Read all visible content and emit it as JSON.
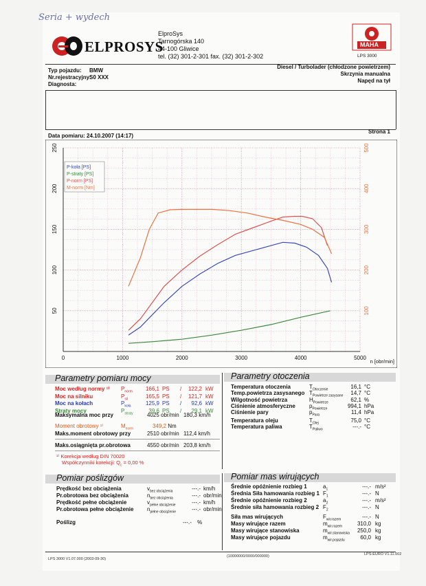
{
  "handwritten_note": "Seria + wydech",
  "company": {
    "logo_text": "ELPROSYS",
    "name": "ElproSys",
    "street": "Tarnogórska 140",
    "city": "44-100 Gliwice",
    "phone": "tel. (32) 301-2-301   fax. (32) 301-2-302"
  },
  "maha": {
    "logo_text": "MAHA",
    "model": "LPS 3000"
  },
  "vehicle": {
    "type_label": "Typ pojazdu:",
    "type_value": "BMW",
    "reg_label": "Nr.rejestracyjny:",
    "reg_value": "S0 XXX",
    "diag_label": "Diagnosta:",
    "engine": "Diesel / Turbolader (chłodzone powietrzem)",
    "gearbox": "Skrzynia manualna",
    "drive": "Napęd na tył"
  },
  "measurement": {
    "date_label": "Data pomiaru:",
    "date_value": "24.10.2007 (14:17)",
    "page_label": "Strona 1"
  },
  "chart_data": {
    "type": "line",
    "xlabel": "n [obr/min]",
    "xlim": [
      0,
      5000
    ],
    "ylim": [
      0,
      250
    ],
    "ylim_right": [
      0,
      500
    ],
    "x_ticks": [
      0,
      1000,
      2000,
      3000,
      4000,
      5000
    ],
    "y_ticks": [
      50,
      100,
      150,
      200,
      250
    ],
    "y_ticks_right": [
      100,
      200,
      300,
      400,
      500
    ],
    "legend": "top-left",
    "series": [
      {
        "name": "P-koła [PS]",
        "color": "#3a4ab8",
        "axis": "left",
        "x": [
          1100,
          1300,
          1500,
          1700,
          2000,
          2300,
          2600,
          2900,
          3200,
          3500,
          3700,
          3900,
          4100,
          4300,
          4450,
          4520
        ],
        "y": [
          20,
          30,
          45,
          60,
          80,
          95,
          108,
          118,
          124,
          130,
          134,
          133,
          128,
          118,
          102,
          85
        ]
      },
      {
        "name": "P-straty [PS]",
        "color": "#3a8a3a",
        "axis": "left",
        "x": [
          1100,
          1500,
          2000,
          2500,
          3000,
          3500,
          4000,
          4500
        ],
        "y": [
          10,
          12,
          15,
          20,
          26,
          33,
          42,
          50
        ]
      },
      {
        "name": "P-norm [PS]",
        "color": "#e05050",
        "axis": "left",
        "x": [
          1100,
          1300,
          1500,
          1700,
          2000,
          2300,
          2600,
          2900,
          3200,
          3500,
          3700,
          3900,
          4025,
          4200,
          4350,
          4450
        ],
        "y": [
          26,
          40,
          60,
          80,
          100,
          117,
          131,
          144,
          152,
          160,
          165,
          166,
          166,
          163,
          152,
          130
        ]
      },
      {
        "name": "M-norm [Nm]",
        "color": "#ee7040",
        "axis": "right",
        "x": [
          1100,
          1300,
          1450,
          1600,
          1800,
          2000,
          2300,
          2510,
          2800,
          3100,
          3400,
          3700,
          4000,
          4200,
          4400,
          4520
        ],
        "y": [
          160,
          230,
          300,
          340,
          348,
          349,
          349,
          349,
          346,
          340,
          330,
          322,
          312,
          300,
          280,
          240
        ]
      }
    ]
  },
  "power_params": {
    "title": "Parametry pomiaru mocy",
    "rows": [
      {
        "label": "Moc według normy ¹⁾",
        "sym": "P",
        "sub": "norm",
        "ps": "166,1",
        "kw": "122,2",
        "color": "red"
      },
      {
        "label": "Moc na silniku",
        "sym": "P",
        "sub": "sil",
        "ps": "165,5",
        "kw": "121,7",
        "color": "red"
      },
      {
        "label": "Moc na kołach",
        "sym": "P",
        "sub": "koła",
        "ps": "125,9",
        "kw": "92,6",
        "color": "blue"
      },
      {
        "label": "Straty mocy",
        "sym": "P",
        "sub": "straty",
        "ps": "39,6",
        "kw": "29,1",
        "color": "green"
      }
    ],
    "unit_ps": "PS",
    "unit_kw": "kW",
    "max_power_label": "Maksymalna moc przy",
    "max_power_rpm": "4025",
    "max_power_speed": "180,3",
    "torque_label": "Moment obrotowy ¹⁾",
    "torque_sym": "M",
    "torque_sub": "norm",
    "torque_value": "349,2",
    "torque_unit": "Nm",
    "max_torque_label": "Maks.moment obrotowy przy",
    "max_torque_rpm": "2510",
    "max_torque_speed": "112,4",
    "max_rpm_label": "Maks.osiągnięta pr.obrotowa",
    "max_rpm": "4550",
    "max_rpm_speed": "203,8",
    "rpm_unit": "obr/min",
    "speed_unit": "km/h",
    "note1": "¹⁾ Korekcja według DIN 70020",
    "note2": "Współczynniki korekcji: Q",
    "note2_sub": "c",
    "note2_value": "=    0,00 %"
  },
  "ambient_params": {
    "title": "Parametry otoczenia",
    "rows": [
      {
        "label": "Temperatura otoczenia",
        "sym": "T",
        "sub": "Otoczenie",
        "value": "16,1",
        "unit": "°C"
      },
      {
        "label": "Temp.powietrza zasysanego",
        "sym": "T",
        "sub": "Powietrze zasysane",
        "value": "14,7",
        "unit": "°C"
      },
      {
        "label": "Wilgotność powietrza",
        "sym": "H",
        "sub": "Powietrze",
        "value": "62,1",
        "unit": "%"
      },
      {
        "label": "Ciśnienie atmosferyczne",
        "sym": "p",
        "sub": "Powietrze",
        "value": "994,1",
        "unit": "hPa"
      },
      {
        "label": "Ciśnienie pary",
        "sym": "p",
        "sub": "Para",
        "value": "11,4",
        "unit": "hPa"
      },
      {
        "label": "Temperatura oleju",
        "sym": "T",
        "sub": "Olej",
        "value": "75,0",
        "unit": "°C"
      },
      {
        "label": "Temperatura paliwa",
        "sym": "T",
        "sub": "Paliwo",
        "value": "---.-",
        "unit": "°C"
      }
    ]
  },
  "slip_params": {
    "title": "Pomiar poślizgów",
    "rows": [
      {
        "label": "Prędkość bez obciążenia",
        "sym": "v",
        "sub": "bez obciążenia",
        "value": "---.-",
        "unit": "km/h"
      },
      {
        "label": "Pr.obrotowa bez obciążenia",
        "sym": "n",
        "sub": "bez obciążenia",
        "value": "---.-",
        "unit": "obr/min"
      },
      {
        "label": "Prędkość pełne obciążenie",
        "sym": "v",
        "sub": "pełne obciążenie",
        "value": "---.-",
        "unit": "km/h"
      },
      {
        "label": "Pr.obrotowa pełne obciążenie",
        "sym": "n",
        "sub": "pełne obciążenie",
        "value": "---.-",
        "unit": "obr/min"
      }
    ],
    "slip_label": "Poślizg",
    "slip_value": "---.-",
    "slip_unit": "%"
  },
  "mass_params": {
    "title": "Pomiar mas wirujących",
    "rows": [
      {
        "label": "Średnie opóźnienie rozbieg 1",
        "sym": "a",
        "sub": "1",
        "value": "---.-",
        "unit": "m/s²"
      },
      {
        "label": "Średnia Siła hamowania rozbieg 1",
        "sym": "F",
        "sub": "1",
        "value": "---.-",
        "unit": "N"
      },
      {
        "label": "Średnie opóźnienie rozbieg 2",
        "sym": "a",
        "sub": "2",
        "value": "---.-",
        "unit": "m/s²"
      },
      {
        "label": "Średnie siła hamowania rozbieg 2",
        "sym": "F",
        "sub": "2",
        "value": "---.-",
        "unit": "N"
      },
      {
        "label": "Siła mas wirujących",
        "sym": "F",
        "sub": "wir.razem",
        "value": "---.-",
        "unit": "N"
      },
      {
        "label": "Masy wirujące razem",
        "sym": "m",
        "sub": "wir.razem",
        "value": "310,0",
        "unit": "kg"
      },
      {
        "label": "Masy wirujące stanowiska",
        "sym": "m",
        "sub": "wir.stanowiska",
        "value": "250,0",
        "unit": "kg"
      },
      {
        "label": "Masy wirujące pojazdu",
        "sym": "m",
        "sub": "wir.pojazdu",
        "value": "60,0",
        "unit": "kg"
      }
    ]
  },
  "footer": {
    "left": "LPS 3000 V1.07.000 (2003-09-30)",
    "center": "(10000000/0000/000000)",
    "right": "LPS-EURO V1.11.002"
  }
}
